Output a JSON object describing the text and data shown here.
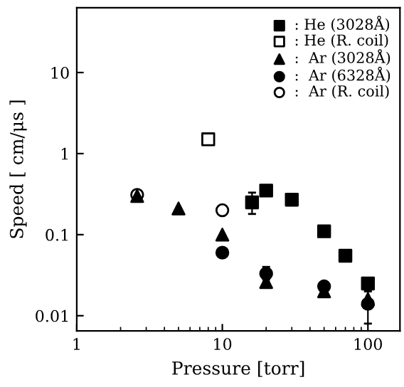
{
  "chart_data": {
    "type": "scatter",
    "xlabel": "Pressure [torr]",
    "ylabel": "Speed [ cm/μs ]",
    "log": "xy",
    "xlim": [
      1,
      166
    ],
    "ylim": [
      0.0065,
      63
    ],
    "xticks": [
      1,
      10,
      100
    ],
    "yticks": [
      {
        "value": 0.01,
        "label": "0.01"
      },
      {
        "value": 0.1,
        "label": "0.1"
      },
      {
        "value": 1,
        "label": "1"
      },
      {
        "value": 10,
        "label": "10"
      }
    ],
    "legend": "top right",
    "grid": false,
    "series": [
      {
        "name": ": He (3028Å)",
        "color": "#000000",
        "marker": "square",
        "x": [
          16,
          20,
          30,
          50,
          70,
          100
        ],
        "values": [
          0.25,
          0.35,
          0.27,
          0.11,
          0.055,
          0.025
        ],
        "errors": [
          [
            0.18,
            0.33
          ],
          null,
          null,
          null,
          null,
          null
        ]
      },
      {
        "name": ": He (R. coil)",
        "color": "#ffffff",
        "marker": "square",
        "x": [
          8
        ],
        "values": [
          1.5
        ]
      },
      {
        "name": ":  Ar (3028Å)",
        "color": "#000000",
        "marker": "triangle",
        "x": [
          2.6,
          5,
          10,
          20,
          50,
          100
        ],
        "values": [
          0.3,
          0.21,
          0.1,
          0.026,
          0.02,
          0.016
        ]
      },
      {
        "name": ":  Ar (6328Å)",
        "color": "#000000",
        "marker": "circle",
        "x": [
          10,
          20,
          50,
          100
        ],
        "values": [
          0.06,
          0.033,
          0.023,
          0.014
        ],
        "errors": [
          null,
          [
            0.028,
            0.04
          ],
          null,
          [
            0.008,
            0.02
          ]
        ]
      },
      {
        "name": ":  Ar (R. coil)",
        "color": "#ffffff",
        "marker": "circle",
        "x": [
          2.6,
          10
        ],
        "values": [
          0.31,
          0.2
        ]
      }
    ]
  }
}
